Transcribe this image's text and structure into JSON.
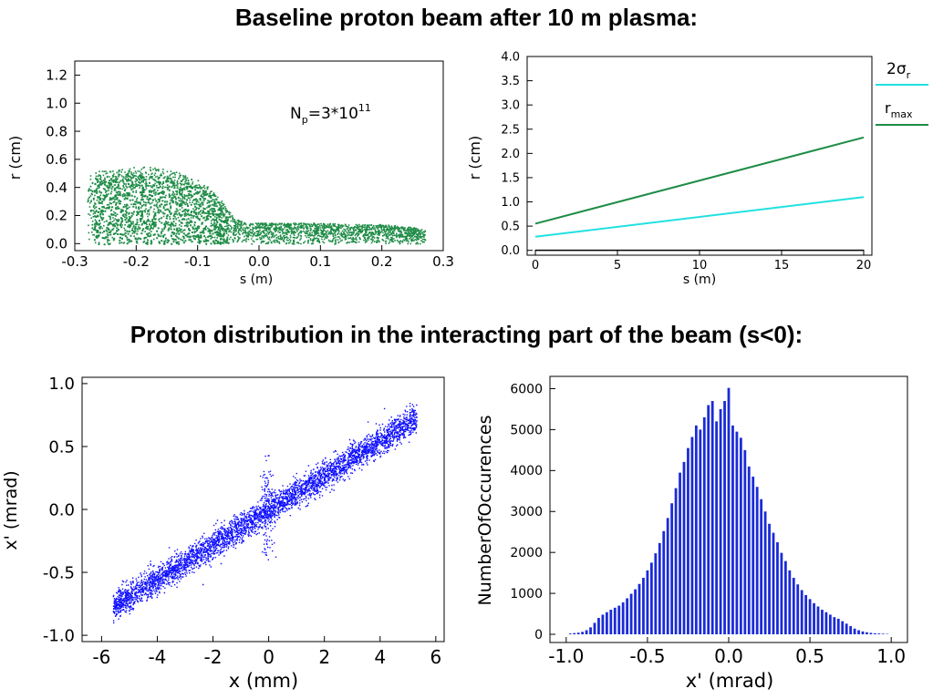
{
  "headings": {
    "top": "Baseline proton beam after 10 m plasma:",
    "middle": "Proton distribution in the interacting part of the beam (s<0):"
  },
  "chart_data": [
    {
      "id": "r-vs-s",
      "type": "scatter",
      "xlabel": "s (m)",
      "ylabel": "r (cm)",
      "xlim": [
        -0.3,
        0.3
      ],
      "ylim": [
        -0.05,
        1.3
      ],
      "xticks": [
        "-0.3",
        "-0.2",
        "-0.1",
        "0.0",
        "0.1",
        "0.2",
        "0.3"
      ],
      "yticks": [
        "0.0",
        "0.2",
        "0.4",
        "0.6",
        "0.8",
        "1.0",
        "1.2"
      ],
      "annotation": {
        "text": "N",
        "sub": "p",
        "eq": "=3*10",
        "sup": "11"
      },
      "color": "#1e8c46",
      "envelope": {
        "s": [
          -0.28,
          -0.26,
          -0.24,
          -0.22,
          -0.2,
          -0.18,
          -0.16,
          -0.14,
          -0.12,
          -0.1,
          -0.08,
          -0.06,
          -0.04,
          -0.02,
          0.0,
          0.05,
          0.1,
          0.15,
          0.2,
          0.25,
          0.27
        ],
        "r_max": [
          0.5,
          0.52,
          0.53,
          0.54,
          0.55,
          0.55,
          0.54,
          0.52,
          0.49,
          0.46,
          0.4,
          0.3,
          0.18,
          0.15,
          0.15,
          0.15,
          0.15,
          0.14,
          0.14,
          0.12,
          0.1
        ]
      }
    },
    {
      "id": "radius-vs-s",
      "type": "line",
      "xlabel": "s (m)",
      "ylabel": "r (cm)",
      "xlim": [
        -0.5,
        20.5
      ],
      "ylim": [
        -0.1,
        4.0
      ],
      "xticks": [
        "0",
        "5",
        "10",
        "15",
        "20"
      ],
      "yticks": [
        "0.0",
        "0.5",
        "1.0",
        "1.5",
        "2.0",
        "2.5",
        "3.0",
        "3.5",
        "4.0"
      ],
      "x": [
        0,
        20
      ],
      "series": [
        {
          "name": "2σr",
          "label_main": "2σ",
          "label_sub": "r",
          "values": [
            0.28,
            1.1
          ],
          "color": "#22e0e0"
        },
        {
          "name": "rmax",
          "label_main": "r",
          "label_sub": "max",
          "values": [
            0.55,
            2.33
          ],
          "color": "#1e8c46"
        }
      ],
      "baseline": {
        "values": [
          0.0,
          0.0
        ],
        "color": "#000000"
      }
    },
    {
      "id": "xprime-vs-x",
      "type": "scatter",
      "xlabel": "x  (mm)",
      "ylabel": "x' (mrad)",
      "xlim": [
        -6.7,
        6.3
      ],
      "ylim": [
        -1.05,
        1.05
      ],
      "xticks": [
        "-6",
        "-4",
        "-2",
        "0",
        "2",
        "4",
        "6"
      ],
      "yticks": [
        "-1.0",
        "-0.5",
        "0.0",
        "0.5",
        "1.0"
      ],
      "color": "#1010ff",
      "band": {
        "x_range": [
          -5.6,
          5.3
        ],
        "slope_mrad_per_mm": 0.138
      }
    },
    {
      "id": "xprime-histogram",
      "type": "bar",
      "xlabel": "x'  (mrad)",
      "ylabel": "NumberOfOccurences",
      "xlim": [
        -1.1,
        1.1
      ],
      "ylim": [
        -200,
        6300
      ],
      "xticks": [
        "-1.0",
        "-0.5",
        "0.0",
        "0.5",
        "1.0"
      ],
      "yticks": [
        "0",
        "1000",
        "2000",
        "3000",
        "4000",
        "5000",
        "6000"
      ],
      "color": "#1a2bd6",
      "x": [
        -0.975,
        -0.95,
        -0.925,
        -0.9,
        -0.875,
        -0.85,
        -0.825,
        -0.8,
        -0.775,
        -0.75,
        -0.725,
        -0.7,
        -0.675,
        -0.65,
        -0.625,
        -0.6,
        -0.575,
        -0.55,
        -0.525,
        -0.5,
        -0.475,
        -0.45,
        -0.425,
        -0.4,
        -0.375,
        -0.35,
        -0.325,
        -0.3,
        -0.275,
        -0.25,
        -0.225,
        -0.2,
        -0.175,
        -0.15,
        -0.125,
        -0.1,
        -0.075,
        -0.05,
        -0.025,
        0.0,
        0.025,
        0.05,
        0.075,
        0.1,
        0.125,
        0.15,
        0.175,
        0.2,
        0.225,
        0.25,
        0.275,
        0.3,
        0.325,
        0.35,
        0.375,
        0.4,
        0.425,
        0.45,
        0.475,
        0.5,
        0.525,
        0.55,
        0.575,
        0.6,
        0.625,
        0.65,
        0.675,
        0.7,
        0.725,
        0.75,
        0.775,
        0.8,
        0.825,
        0.85,
        0.875,
        0.9,
        0.925,
        0.95,
        0.975
      ],
      "values": [
        20,
        30,
        40,
        60,
        100,
        170,
        280,
        400,
        480,
        540,
        600,
        650,
        700,
        780,
        880,
        990,
        1100,
        1230,
        1380,
        1560,
        1750,
        1980,
        2230,
        2520,
        2840,
        3200,
        3570,
        3950,
        4210,
        4550,
        4820,
        5100,
        5000,
        5300,
        5600,
        5700,
        5200,
        5500,
        5700,
        6020,
        5100,
        4950,
        4800,
        4500,
        4100,
        3850,
        3600,
        3300,
        3000,
        2700,
        2480,
        2250,
        1990,
        1790,
        1560,
        1380,
        1220,
        1080,
        960,
        860,
        760,
        680,
        600,
        540,
        480,
        420,
        380,
        320,
        260,
        200,
        140,
        100,
        70,
        50,
        35,
        25,
        20,
        15,
        10
      ]
    }
  ]
}
